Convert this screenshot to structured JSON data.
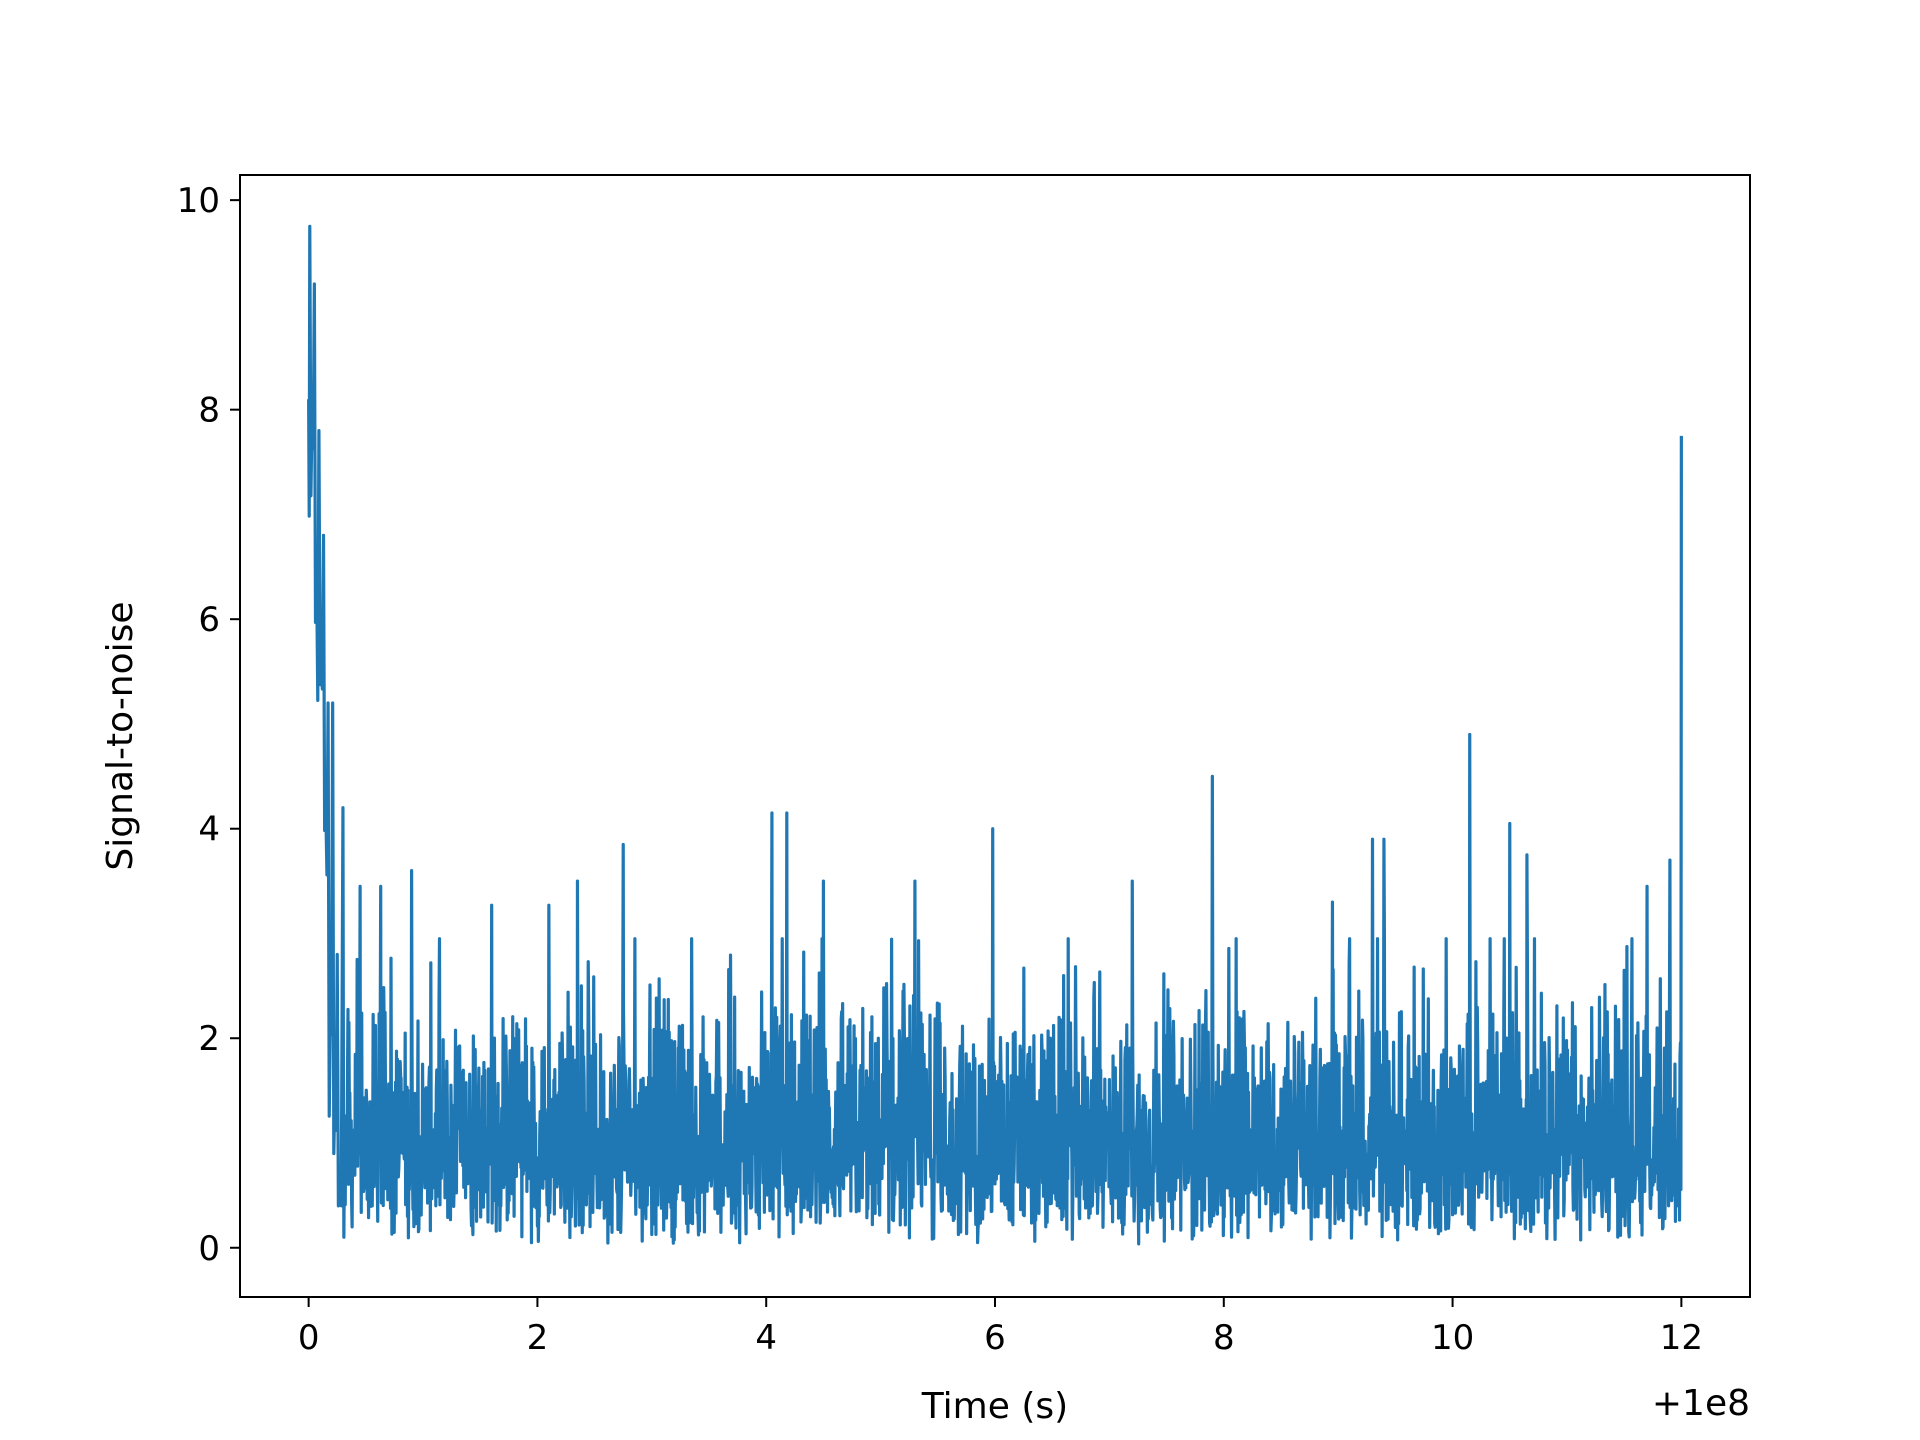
{
  "chart_data": {
    "type": "line",
    "title": "",
    "xlabel": "Time (s)",
    "ylabel": "Signal-to-noise",
    "x_offset_label": "+1e8",
    "xlim": [
      -0.6,
      12.6
    ],
    "ylim": [
      -0.47,
      10.24
    ],
    "x_ticks": [
      0,
      2,
      4,
      6,
      8,
      10,
      12
    ],
    "x_tick_labels": [
      "0",
      "2",
      "4",
      "6",
      "8",
      "10",
      "12"
    ],
    "y_ticks": [
      0,
      2,
      4,
      6,
      8,
      10
    ],
    "y_tick_labels": [
      "0",
      "2",
      "4",
      "6",
      "8",
      "10"
    ],
    "grid": false,
    "legend": "none",
    "line_color": "#1f77b4",
    "series": [
      {
        "x_start": 0,
        "x_end": 12,
        "baseline_mean": 1.0,
        "points": [
          [
            0.0,
            8.1
          ],
          [
            0.01,
            9.75
          ],
          [
            0.03,
            8.0
          ],
          [
            0.05,
            9.2
          ],
          [
            0.07,
            6.4
          ],
          [
            0.09,
            7.8
          ],
          [
            0.11,
            5.5
          ],
          [
            0.13,
            6.8
          ],
          [
            0.15,
            4.2
          ],
          [
            0.17,
            5.2
          ],
          [
            0.19,
            2.2
          ],
          [
            0.21,
            5.2
          ],
          [
            0.23,
            1.5
          ],
          [
            0.25,
            2.8
          ],
          [
            0.27,
            0.5
          ],
          [
            0.3,
            4.2
          ],
          [
            0.45,
            3.45
          ],
          [
            0.63,
            3.45
          ],
          [
            0.9,
            3.6
          ],
          [
            1.6,
            3.27
          ],
          [
            2.1,
            3.27
          ],
          [
            2.35,
            3.5
          ],
          [
            2.75,
            3.85
          ],
          [
            4.05,
            4.15
          ],
          [
            4.18,
            4.15
          ],
          [
            4.5,
            3.5
          ],
          [
            5.3,
            3.5
          ],
          [
            5.98,
            4.0
          ],
          [
            7.2,
            3.5
          ],
          [
            7.9,
            4.5
          ],
          [
            8.95,
            3.3
          ],
          [
            9.3,
            3.9
          ],
          [
            9.4,
            3.9
          ],
          [
            10.15,
            4.9
          ],
          [
            10.5,
            4.05
          ],
          [
            10.65,
            3.75
          ],
          [
            11.7,
            3.45
          ],
          [
            11.9,
            3.7
          ],
          [
            12.0,
            7.75
          ]
        ]
      }
    ]
  }
}
